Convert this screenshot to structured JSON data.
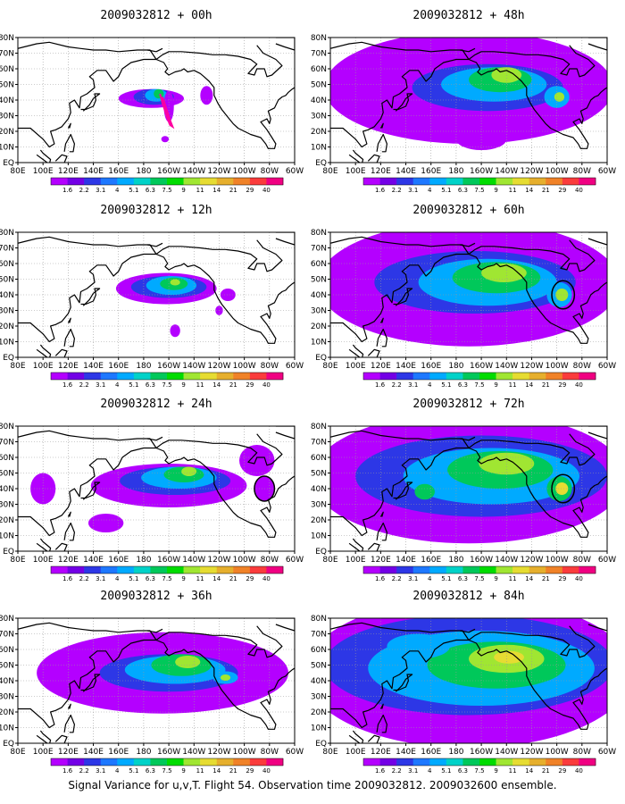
{
  "caption": "Signal Variance for u,v,T. Flight 54. Observation time 2009032812. 2009032600 ensemble.",
  "colors": {
    "levels": [
      "#b400ff",
      "#7300e6",
      "#2d37e6",
      "#1e78ff",
      "#00aaff",
      "#00d2c8",
      "#00c85a",
      "#00dc00",
      "#a0e632",
      "#e6dc32",
      "#e6af2d",
      "#f08228",
      "#fa3c3c",
      "#f00082"
    ],
    "land_outline": "#000000",
    "grid": "#9a9a9a",
    "flight_track": "#ff00a0",
    "circle": "#000000"
  },
  "chart_data": [
    {
      "type": "heatmap",
      "title": "2009032812 + 00h",
      "xlabel": "",
      "ylabel": "",
      "x_tick_labels": [
        "80E",
        "100E",
        "120E",
        "140E",
        "160E",
        "180",
        "160W",
        "140W",
        "120W",
        "100W",
        "80W",
        "60W"
      ],
      "y_tick_labels": [
        "EQ",
        "10N",
        "20N",
        "30N",
        "40N",
        "50N",
        "60N",
        "70N",
        "80N"
      ],
      "xlim": [
        80,
        300
      ],
      "ylim": [
        0,
        80
      ],
      "colorbar_levels": [
        "1.6",
        "2.2",
        "3.1",
        "4",
        "5.1",
        "6.3",
        "7.5",
        "9",
        "11",
        "14",
        "21",
        "29",
        "40"
      ],
      "flight_track": [
        [
          193,
          44
        ],
        [
          195,
          38
        ],
        [
          197,
          33
        ],
        [
          199,
          28
        ],
        [
          201,
          24
        ],
        [
          203,
          23
        ],
        [
          201,
          27
        ],
        [
          199,
          32
        ],
        [
          197,
          37
        ],
        [
          195,
          42
        ]
      ],
      "blobs": [
        {
          "lon": 186,
          "lat": 41,
          "rx": 26,
          "ry": 6,
          "level": 0
        },
        {
          "lon": 188,
          "lat": 42,
          "rx": 16,
          "ry": 5,
          "level": 2
        },
        {
          "lon": 190,
          "lat": 43,
          "rx": 9,
          "ry": 4,
          "level": 4
        },
        {
          "lon": 192,
          "lat": 44,
          "rx": 4,
          "ry": 3,
          "level": 6
        },
        {
          "lon": 200,
          "lat": 36,
          "rx": 4,
          "ry": 10,
          "level": 0
        },
        {
          "lon": 230,
          "lat": 43,
          "rx": 5,
          "ry": 6,
          "level": 0
        },
        {
          "lon": 197,
          "lat": 15,
          "rx": 3,
          "ry": 2,
          "level": 0
        }
      ],
      "circles": []
    },
    {
      "type": "heatmap",
      "title": "2009032812 + 12h",
      "xlabel": "",
      "ylabel": "",
      "x_tick_labels": [
        "80E",
        "100E",
        "120E",
        "140E",
        "160E",
        "180",
        "160W",
        "140W",
        "120W",
        "100W",
        "80W",
        "60W"
      ],
      "y_tick_labels": [
        "EQ",
        "10N",
        "20N",
        "30N",
        "40N",
        "50N",
        "60N",
        "70N",
        "80N"
      ],
      "xlim": [
        80,
        300
      ],
      "ylim": [
        0,
        80
      ],
      "colorbar_levels": [
        "1.6",
        "2.2",
        "3.1",
        "4",
        "5.1",
        "6.3",
        "7.5",
        "9",
        "11",
        "14",
        "21",
        "29",
        "40"
      ],
      "flight_track": [],
      "blobs": [
        {
          "lon": 198,
          "lat": 44,
          "rx": 40,
          "ry": 10,
          "level": 0
        },
        {
          "lon": 200,
          "lat": 45,
          "rx": 30,
          "ry": 7,
          "level": 2
        },
        {
          "lon": 202,
          "lat": 46,
          "rx": 20,
          "ry": 6,
          "level": 4
        },
        {
          "lon": 204,
          "lat": 47,
          "rx": 11,
          "ry": 4,
          "level": 6
        },
        {
          "lon": 205,
          "lat": 48,
          "rx": 4,
          "ry": 2,
          "level": 8
        },
        {
          "lon": 247,
          "lat": 40,
          "rx": 6,
          "ry": 4,
          "level": 0
        },
        {
          "lon": 205,
          "lat": 17,
          "rx": 4,
          "ry": 4,
          "level": 0
        },
        {
          "lon": 240,
          "lat": 30,
          "rx": 3,
          "ry": 3,
          "level": 0
        }
      ],
      "circles": []
    },
    {
      "type": "heatmap",
      "title": "2009032812 + 24h",
      "xlabel": "",
      "ylabel": "",
      "x_tick_labels": [
        "80E",
        "100E",
        "120E",
        "140E",
        "160E",
        "180",
        "160W",
        "140W",
        "120W",
        "100W",
        "80W",
        "60W"
      ],
      "y_tick_labels": [
        "EQ",
        "10N",
        "20N",
        "30N",
        "40N",
        "50N",
        "60N",
        "70N",
        "80N"
      ],
      "xlim": [
        80,
        300
      ],
      "ylim": [
        0,
        80
      ],
      "colorbar_levels": [
        "1.6",
        "2.2",
        "3.1",
        "4",
        "5.1",
        "6.3",
        "7.5",
        "9",
        "11",
        "14",
        "21",
        "29",
        "40"
      ],
      "flight_track": [],
      "blobs": [
        {
          "lon": 200,
          "lat": 42,
          "rx": 62,
          "ry": 14,
          "level": 0
        },
        {
          "lon": 205,
          "lat": 45,
          "rx": 44,
          "ry": 9,
          "level": 2
        },
        {
          "lon": 208,
          "lat": 47,
          "rx": 30,
          "ry": 7,
          "level": 4
        },
        {
          "lon": 212,
          "lat": 49,
          "rx": 16,
          "ry": 5,
          "level": 6
        },
        {
          "lon": 216,
          "lat": 51,
          "rx": 6,
          "ry": 3,
          "level": 8
        },
        {
          "lon": 276,
          "lat": 40,
          "rx": 8,
          "ry": 8,
          "level": 0
        },
        {
          "lon": 270,
          "lat": 58,
          "rx": 14,
          "ry": 10,
          "level": 0
        },
        {
          "lon": 100,
          "lat": 40,
          "rx": 10,
          "ry": 10,
          "level": 0
        },
        {
          "lon": 150,
          "lat": 18,
          "rx": 14,
          "ry": 6,
          "level": 0
        }
      ],
      "circles": [
        {
          "lon": 276,
          "lat": 40,
          "r": 8
        }
      ]
    },
    {
      "type": "heatmap",
      "title": "2009032812 + 36h",
      "xlabel": "",
      "ylabel": "",
      "x_tick_labels": [
        "80E",
        "100E",
        "120E",
        "140E",
        "160E",
        "180",
        "160W",
        "140W",
        "120W",
        "100W",
        "80W",
        "60W"
      ],
      "y_tick_labels": [
        "EQ",
        "10N",
        "20N",
        "30N",
        "40N",
        "50N",
        "60N",
        "70N",
        "80N"
      ],
      "xlim": [
        80,
        300
      ],
      "ylim": [
        0,
        80
      ],
      "colorbar_levels": [
        "1.6",
        "2.2",
        "3.1",
        "4",
        "5.1",
        "6.3",
        "7.5",
        "9",
        "11",
        "14",
        "21",
        "29",
        "40"
      ],
      "flight_track": [],
      "blobs": [
        {
          "lon": 195,
          "lat": 45,
          "rx": 100,
          "ry": 26,
          "level": 0
        },
        {
          "lon": 200,
          "lat": 45,
          "rx": 55,
          "ry": 12,
          "level": 2
        },
        {
          "lon": 205,
          "lat": 47,
          "rx": 40,
          "ry": 9,
          "level": 4
        },
        {
          "lon": 210,
          "lat": 50,
          "rx": 24,
          "ry": 7,
          "level": 6
        },
        {
          "lon": 215,
          "lat": 52,
          "rx": 10,
          "ry": 4,
          "level": 8
        },
        {
          "lon": 245,
          "lat": 42,
          "rx": 10,
          "ry": 4,
          "level": 4
        },
        {
          "lon": 245,
          "lat": 42,
          "rx": 4,
          "ry": 2,
          "level": 8
        }
      ],
      "circles": []
    },
    {
      "type": "heatmap",
      "title": "2009032812 + 48h",
      "xlabel": "",
      "ylabel": "",
      "x_tick_labels": [
        "80E",
        "100E",
        "120E",
        "140E",
        "160E",
        "180",
        "160W",
        "140W",
        "120W",
        "100W",
        "80W",
        "60W"
      ],
      "y_tick_labels": [
        "EQ",
        "10N",
        "20N",
        "30N",
        "40N",
        "50N",
        "60N",
        "70N",
        "80N"
      ],
      "xlim": [
        80,
        300
      ],
      "ylim": [
        0,
        80
      ],
      "colorbar_levels": [
        "1.6",
        "2.2",
        "3.1",
        "4",
        "5.1",
        "6.3",
        "7.5",
        "9",
        "11",
        "14",
        "21",
        "29",
        "40"
      ],
      "flight_track": [],
      "blobs": [
        {
          "lon": 190,
          "lat": 48,
          "rx": 115,
          "ry": 36,
          "level": 0
        },
        {
          "lon": 205,
          "lat": 48,
          "rx": 60,
          "ry": 15,
          "level": 2
        },
        {
          "lon": 210,
          "lat": 50,
          "rx": 42,
          "ry": 11,
          "level": 4
        },
        {
          "lon": 215,
          "lat": 53,
          "rx": 25,
          "ry": 8,
          "level": 6
        },
        {
          "lon": 220,
          "lat": 56,
          "rx": 12,
          "ry": 5,
          "level": 8
        },
        {
          "lon": 260,
          "lat": 42,
          "rx": 10,
          "ry": 7,
          "level": 4
        },
        {
          "lon": 262,
          "lat": 42,
          "rx": 4,
          "ry": 3,
          "level": 8
        },
        {
          "lon": 200,
          "lat": 15,
          "rx": 20,
          "ry": 7,
          "level": 0
        }
      ],
      "circles": []
    },
    {
      "type": "heatmap",
      "title": "2009032812 + 60h",
      "xlabel": "",
      "ylabel": "",
      "x_tick_labels": [
        "80E",
        "100E",
        "120E",
        "140E",
        "160E",
        "180",
        "160W",
        "140W",
        "120W",
        "100W",
        "80W",
        "60W"
      ],
      "y_tick_labels": [
        "EQ",
        "10N",
        "20N",
        "30N",
        "40N",
        "50N",
        "60N",
        "70N",
        "80N"
      ],
      "xlim": [
        80,
        300
      ],
      "ylim": [
        0,
        80
      ],
      "colorbar_levels": [
        "1.6",
        "2.2",
        "3.1",
        "4",
        "5.1",
        "6.3",
        "7.5",
        "9",
        "11",
        "14",
        "21",
        "29",
        "40"
      ],
      "flight_track": [],
      "blobs": [
        {
          "lon": 190,
          "lat": 47,
          "rx": 120,
          "ry": 40,
          "level": 0
        },
        {
          "lon": 195,
          "lat": 48,
          "rx": 80,
          "ry": 20,
          "level": 2
        },
        {
          "lon": 205,
          "lat": 48,
          "rx": 55,
          "ry": 15,
          "level": 4
        },
        {
          "lon": 212,
          "lat": 51,
          "rx": 35,
          "ry": 10,
          "level": 6
        },
        {
          "lon": 218,
          "lat": 54,
          "rx": 18,
          "ry": 6,
          "level": 8
        },
        {
          "lon": 262,
          "lat": 40,
          "rx": 10,
          "ry": 8,
          "level": 4
        },
        {
          "lon": 264,
          "lat": 40,
          "rx": 5,
          "ry": 4,
          "level": 8
        },
        {
          "lon": 200,
          "lat": 15,
          "rx": 22,
          "ry": 7,
          "level": 0
        }
      ],
      "circles": [
        {
          "lon": 265,
          "lat": 40,
          "r": 9
        }
      ]
    },
    {
      "type": "heatmap",
      "title": "2009032812 + 72h",
      "xlabel": "",
      "ylabel": "",
      "x_tick_labels": [
        "80E",
        "100E",
        "120E",
        "140E",
        "160E",
        "180",
        "160W",
        "140W",
        "120W",
        "100W",
        "80W",
        "60W"
      ],
      "y_tick_labels": [
        "EQ",
        "10N",
        "20N",
        "30N",
        "40N",
        "50N",
        "60N",
        "70N",
        "80N"
      ],
      "xlim": [
        80,
        300
      ],
      "ylim": [
        0,
        80
      ],
      "colorbar_levels": [
        "1.6",
        "2.2",
        "3.1",
        "4",
        "5.1",
        "6.3",
        "7.5",
        "9",
        "11",
        "14",
        "21",
        "29",
        "40"
      ],
      "flight_track": [],
      "blobs": [
        {
          "lon": 190,
          "lat": 47,
          "rx": 125,
          "ry": 42,
          "level": 0
        },
        {
          "lon": 200,
          "lat": 48,
          "rx": 100,
          "ry": 26,
          "level": 2
        },
        {
          "lon": 208,
          "lat": 48,
          "rx": 70,
          "ry": 18,
          "level": 4
        },
        {
          "lon": 215,
          "lat": 52,
          "rx": 42,
          "ry": 12,
          "level": 6
        },
        {
          "lon": 220,
          "lat": 56,
          "rx": 22,
          "ry": 7,
          "level": 8
        },
        {
          "lon": 262,
          "lat": 40,
          "rx": 10,
          "ry": 8,
          "level": 6
        },
        {
          "lon": 264,
          "lat": 40,
          "rx": 5,
          "ry": 4,
          "level": 9
        },
        {
          "lon": 155,
          "lat": 38,
          "rx": 8,
          "ry": 5,
          "level": 6
        }
      ],
      "circles": [
        {
          "lon": 265,
          "lat": 40,
          "r": 9
        }
      ]
    },
    {
      "type": "heatmap",
      "title": "2009032812 + 84h",
      "xlabel": "",
      "ylabel": "",
      "x_tick_labels": [
        "80E",
        "100E",
        "120E",
        "140E",
        "160E",
        "180",
        "160W",
        "140W",
        "120W",
        "100W",
        "80W",
        "60W"
      ],
      "y_tick_labels": [
        "EQ",
        "10N",
        "20N",
        "30N",
        "40N",
        "50N",
        "60N",
        "70N",
        "80N"
      ],
      "xlim": [
        80,
        300
      ],
      "ylim": [
        0,
        80
      ],
      "colorbar_levels": [
        "1.6",
        "2.2",
        "3.1",
        "4",
        "5.1",
        "6.3",
        "7.5",
        "9",
        "11",
        "14",
        "21",
        "29",
        "40"
      ],
      "flight_track": [],
      "blobs": [
        {
          "lon": 190,
          "lat": 45,
          "rx": 130,
          "ry": 48,
          "level": 0
        },
        {
          "lon": 190,
          "lat": 50,
          "rx": 115,
          "ry": 32,
          "level": 2
        },
        {
          "lon": 200,
          "lat": 48,
          "rx": 90,
          "ry": 24,
          "level": 4
        },
        {
          "lon": 212,
          "lat": 50,
          "rx": 55,
          "ry": 15,
          "level": 6
        },
        {
          "lon": 220,
          "lat": 54,
          "rx": 30,
          "ry": 9,
          "level": 8
        },
        {
          "lon": 222,
          "lat": 55,
          "rx": 12,
          "ry": 4,
          "level": 9
        },
        {
          "lon": 150,
          "lat": 62,
          "rx": 25,
          "ry": 8,
          "level": 4
        }
      ],
      "circles": []
    }
  ]
}
